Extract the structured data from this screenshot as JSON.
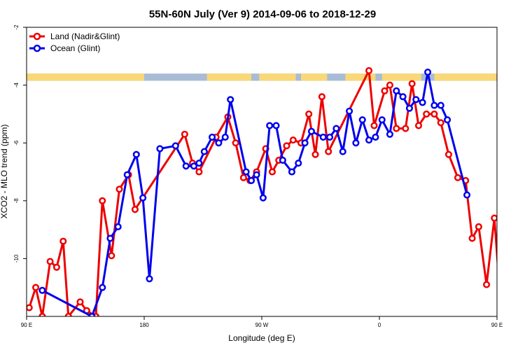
{
  "chart_data": {
    "type": "line",
    "title": "55N-60N July (Ver 9)   2014-09-06 to 2018-12-29",
    "xlabel": "Longitude (deg E)",
    "ylabel": "XCO2 - MLO trend (ppm)",
    "xlim": [
      90,
      450
    ],
    "ylim": [
      -12,
      -2
    ],
    "x_ticks": [
      {
        "value": 90,
        "label": "90 E"
      },
      {
        "value": 180,
        "label": "180"
      },
      {
        "value": 270,
        "label": "90 W"
      },
      {
        "value": 360,
        "label": "0"
      },
      {
        "value": 450,
        "label": "90 E"
      },
      {
        "value": 540,
        "label": "180"
      }
    ],
    "y_ticks": [
      {
        "value": -2,
        "label": "-2"
      },
      {
        "value": -4,
        "label": "-4"
      },
      {
        "value": -6,
        "label": "-6"
      },
      {
        "value": -8,
        "label": "-8"
      },
      {
        "value": -10,
        "label": "-10"
      }
    ],
    "legend_position": "top-left",
    "land_mask_band": {
      "y_top": -3.6,
      "y_bottom": -3.85,
      "ocean_color": "#A9BCD6",
      "land_color": "#F8D878"
    },
    "series": [
      {
        "name": "Land (Nadir&Glint)",
        "color": "#EE0000",
        "points": [
          [
            92,
            -11.7
          ],
          [
            97,
            -11.0
          ],
          [
            102,
            -12.0
          ],
          [
            108,
            -10.1
          ],
          [
            113,
            -10.3
          ],
          [
            118,
            -9.4
          ],
          [
            122,
            -12.0
          ],
          [
            131,
            -11.5
          ],
          [
            136,
            -11.8
          ],
          [
            143,
            -12.0
          ],
          [
            148,
            -8.0
          ],
          [
            155,
            -9.9
          ],
          [
            161,
            -7.6
          ],
          [
            168,
            -7.1
          ],
          [
            173,
            -8.3
          ],
          [
            211,
            -5.7
          ],
          [
            217,
            -6.7
          ],
          [
            222,
            -7.0
          ],
          [
            235,
            -5.8
          ],
          [
            244,
            -5.1
          ],
          [
            250,
            -6.0
          ],
          [
            256,
            -7.2
          ],
          [
            261,
            -7.3
          ],
          [
            266,
            -7.0
          ],
          [
            273,
            -6.2
          ],
          [
            278,
            -7.0
          ],
          [
            283,
            -6.6
          ],
          [
            289,
            -6.1
          ],
          [
            294,
            -5.9
          ],
          [
            300,
            -6.0
          ],
          [
            306,
            -5.0
          ],
          [
            311,
            -6.4
          ],
          [
            316,
            -4.4
          ],
          [
            321,
            -6.3
          ],
          [
            352,
            -3.5
          ],
          [
            356,
            -5.4
          ],
          [
            364,
            -4.2
          ],
          [
            368,
            -4.0
          ],
          [
            373,
            -5.5
          ],
          [
            380,
            -5.5
          ],
          [
            385,
            -3.95
          ],
          [
            390,
            -5.4
          ],
          [
            396,
            -5.0
          ],
          [
            402,
            -5.0
          ],
          [
            407,
            -5.3
          ],
          [
            413,
            -6.4
          ],
          [
            420,
            -7.2
          ],
          [
            426,
            -7.3
          ],
          [
            431,
            -9.3
          ],
          [
            436,
            -8.9
          ],
          [
            442,
            -10.9
          ],
          [
            448,
            -8.6
          ],
          [
            453,
            -11.7
          ],
          [
            459,
            -11.7
          ],
          [
            464,
            -11.0
          ],
          [
            470,
            -11.9
          ],
          [
            475,
            -10.1
          ],
          [
            480,
            -10.3
          ],
          [
            485,
            -9.4
          ],
          [
            491,
            -12.0
          ]
        ]
      },
      {
        "name": "Ocean (Glint)",
        "color": "#0000EE",
        "points": [
          [
            102,
            -11.1
          ],
          [
            140,
            -12.0
          ],
          [
            148,
            -11.0
          ],
          [
            154,
            -9.3
          ],
          [
            160,
            -8.9
          ],
          [
            167,
            -7.1
          ],
          [
            174,
            -6.4
          ],
          [
            179,
            -7.9
          ],
          [
            184,
            -10.7
          ],
          [
            192,
            -6.2
          ],
          [
            204,
            -6.1
          ],
          [
            212,
            -6.8
          ],
          [
            218,
            -6.8
          ],
          [
            222,
            -6.7
          ],
          [
            226,
            -6.3
          ],
          [
            232,
            -5.8
          ],
          [
            237,
            -6.0
          ],
          [
            242,
            -5.8
          ],
          [
            246,
            -4.5
          ],
          [
            258,
            -7.0
          ],
          [
            262,
            -7.3
          ],
          [
            266,
            -7.1
          ],
          [
            271,
            -7.9
          ],
          [
            276,
            -5.4
          ],
          [
            281,
            -5.4
          ],
          [
            286,
            -6.6
          ],
          [
            293,
            -7.0
          ],
          [
            298,
            -6.7
          ],
          [
            303,
            -6.0
          ],
          [
            308,
            -5.6
          ],
          [
            317,
            -5.8
          ],
          [
            322,
            -5.8
          ],
          [
            327,
            -5.5
          ],
          [
            332,
            -6.3
          ],
          [
            337,
            -4.9
          ],
          [
            342,
            -6.0
          ],
          [
            347,
            -5.2
          ],
          [
            352,
            -5.9
          ],
          [
            357,
            -5.8
          ],
          [
            362,
            -5.2
          ],
          [
            368,
            -5.7
          ],
          [
            373,
            -4.2
          ],
          [
            378,
            -4.4
          ],
          [
            383,
            -4.8
          ],
          [
            388,
            -4.5
          ],
          [
            393,
            -4.6
          ],
          [
            397,
            -3.55
          ],
          [
            402,
            -4.7
          ],
          [
            407,
            -4.7
          ],
          [
            412,
            -5.2
          ],
          [
            427,
            -7.8
          ]
        ]
      }
    ]
  }
}
